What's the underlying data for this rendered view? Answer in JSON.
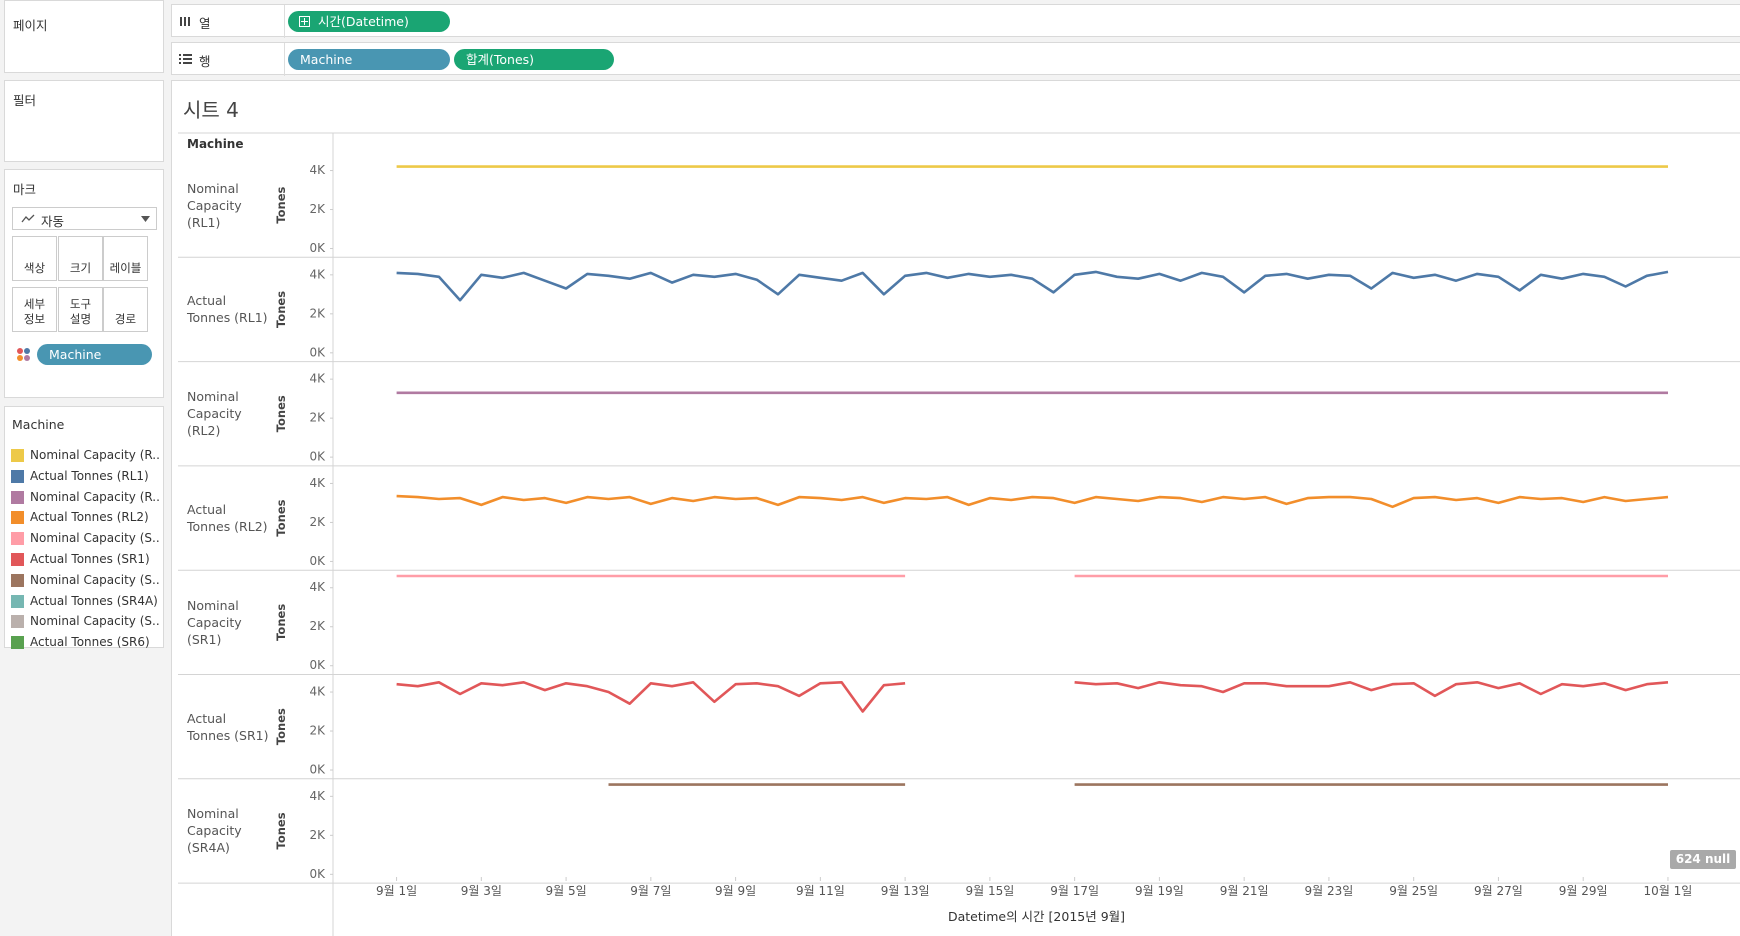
{
  "sidebar": {
    "pages": "페이지",
    "filters": "필터",
    "marks": "마크",
    "mark_type": "자동",
    "mark_buttons": [
      "색상",
      "크기",
      "레이블",
      "세부\n정보",
      "도구\n설명",
      "경로"
    ],
    "mark_pill": "Machine"
  },
  "shelves": {
    "columns_label": "열",
    "columns_pills": [
      "시간(Datetime)"
    ],
    "rows_label": "행",
    "rows_pills": [
      "Machine",
      "합계(Tones)"
    ]
  },
  "legend": {
    "title": "Machine",
    "items": [
      {
        "label": "Nominal Capacity (R..",
        "color": "#edc948"
      },
      {
        "label": "Actual Tonnes (RL1)",
        "color": "#4e79a7"
      },
      {
        "label": "Nominal Capacity (R..",
        "color": "#b07aa1"
      },
      {
        "label": "Actual Tonnes (RL2)",
        "color": "#f28e2b"
      },
      {
        "label": "Nominal Capacity (S..",
        "color": "#ff9da7"
      },
      {
        "label": "Actual Tonnes (SR1)",
        "color": "#e15759"
      },
      {
        "label": "Nominal Capacity (S..",
        "color": "#9c755f"
      },
      {
        "label": "Actual Tonnes (SR4A)",
        "color": "#76b7b2"
      },
      {
        "label": "Nominal Capacity (S..",
        "color": "#bab0ac"
      },
      {
        "label": "Actual Tonnes (SR6)",
        "color": "#59a14f"
      }
    ]
  },
  "sheet_title": "시트 4",
  "null_badge": "624 null",
  "chart_data": {
    "type": "line",
    "facet_header": "Machine",
    "ylabel": "Tones",
    "xlabel": "Datetime의 시간 [2015년 9월]",
    "xlim": [
      -1.5,
      31.7
    ],
    "xticks": [
      {
        "value": 0,
        "label": "9월 1일"
      },
      {
        "value": 2,
        "label": "9월 3일"
      },
      {
        "value": 4,
        "label": "9월 5일"
      },
      {
        "value": 6,
        "label": "9월 7일"
      },
      {
        "value": 8,
        "label": "9월 9일"
      },
      {
        "value": 10,
        "label": "9월 11일"
      },
      {
        "value": 12,
        "label": "9월 13일"
      },
      {
        "value": 14,
        "label": "9월 15일"
      },
      {
        "value": 16,
        "label": "9월 17일"
      },
      {
        "value": 18,
        "label": "9월 19일"
      },
      {
        "value": 20,
        "label": "9월 21일"
      },
      {
        "value": 22,
        "label": "9월 23일"
      },
      {
        "value": 24,
        "label": "9월 25일"
      },
      {
        "value": 26,
        "label": "9월 27일"
      },
      {
        "value": 28,
        "label": "9월 29일"
      },
      {
        "value": 30,
        "label": "10월 1일"
      }
    ],
    "ylim": [
      -450,
      4900
    ],
    "yticks": [
      {
        "value": 0,
        "label": "0K"
      },
      {
        "value": 2000,
        "label": "2K"
      },
      {
        "value": 4000,
        "label": "4K"
      }
    ],
    "x": [
      0,
      0.5,
      1,
      1.5,
      2,
      2.5,
      3,
      3.5,
      4,
      4.5,
      5,
      5.5,
      6,
      6.5,
      7,
      7.5,
      8,
      8.5,
      9,
      9.5,
      10,
      10.5,
      11,
      11.5,
      12,
      12.5,
      13,
      13.5,
      14,
      14.5,
      15,
      15.5,
      16,
      16.5,
      17,
      17.5,
      18,
      18.5,
      19,
      19.5,
      20,
      20.5,
      21,
      21.5,
      22,
      22.5,
      23,
      23.5,
      24,
      24.5,
      25,
      25.5,
      26,
      26.5,
      27,
      27.5,
      28,
      28.5,
      29,
      29.5,
      30
    ],
    "series": [
      {
        "name": "Nominal Capacity (RL1)",
        "color": "#edc948",
        "values": [
          4200,
          4200,
          4200,
          4200,
          4200,
          4200,
          4200,
          4200,
          4200,
          4200,
          4200,
          4200,
          4200,
          4200,
          4200,
          4200,
          4200,
          4200,
          4200,
          4200,
          4200,
          4200,
          4200,
          4200,
          4200,
          4200,
          4200,
          4200,
          4200,
          4200,
          4200,
          4200,
          4200,
          4200,
          4200,
          4200,
          4200,
          4200,
          4200,
          4200,
          4200,
          4200,
          4200,
          4200,
          4200,
          4200,
          4200,
          4200,
          4200,
          4200,
          4200,
          4200,
          4200,
          4200,
          4200,
          4200,
          4200,
          4200,
          4200,
          4200,
          4200
        ]
      },
      {
        "name": "Actual Tonnes (RL1)",
        "color": "#4e79a7",
        "values": [
          4100,
          4050,
          3900,
          2700,
          4000,
          3850,
          4100,
          3700,
          3300,
          4050,
          3950,
          3800,
          4100,
          3600,
          4000,
          3900,
          4050,
          3750,
          3000,
          4000,
          3850,
          3700,
          4100,
          3000,
          3950,
          4100,
          3850,
          4050,
          3900,
          4000,
          3800,
          3100,
          4000,
          4150,
          3900,
          3800,
          4050,
          3700,
          4100,
          3900,
          3100,
          3950,
          4050,
          3800,
          4000,
          3950,
          3300,
          4100,
          3850,
          4000,
          3700,
          4050,
          3900,
          3200,
          4000,
          3800,
          4050,
          3900,
          3400,
          3950,
          4150
        ]
      },
      {
        "name": "Nominal Capacity (RL2)",
        "color": "#b07aa1",
        "values": [
          3300,
          3300,
          3300,
          3300,
          3300,
          3300,
          3300,
          3300,
          3300,
          3300,
          3300,
          3300,
          3300,
          3300,
          3300,
          3300,
          3300,
          3300,
          3300,
          3300,
          3300,
          3300,
          3300,
          3300,
          3300,
          3300,
          3300,
          3300,
          3300,
          3300,
          3300,
          3300,
          3300,
          3300,
          3300,
          3300,
          3300,
          3300,
          3300,
          3300,
          3300,
          3300,
          3300,
          3300,
          3300,
          3300,
          3300,
          3300,
          3300,
          3300,
          3300,
          3300,
          3300,
          3300,
          3300,
          3300,
          3300,
          3300,
          3300,
          3300,
          3300
        ]
      },
      {
        "name": "Actual Tonnes (RL2)",
        "color": "#f28e2b",
        "values": [
          3350,
          3300,
          3200,
          3250,
          2900,
          3300,
          3150,
          3250,
          3000,
          3300,
          3200,
          3300,
          2950,
          3250,
          3100,
          3300,
          3200,
          3250,
          2900,
          3300,
          3250,
          3150,
          3300,
          3000,
          3250,
          3200,
          3300,
          2900,
          3250,
          3150,
          3300,
          3250,
          3000,
          3300,
          3200,
          3100,
          3300,
          3250,
          3050,
          3300,
          3200,
          3300,
          2950,
          3250,
          3300,
          3300,
          3200,
          2800,
          3250,
          3300,
          3150,
          3250,
          3000,
          3300,
          3200,
          3250,
          3050,
          3300,
          3100,
          3200,
          3300
        ]
      },
      {
        "name": "Nominal Capacity (SR1)",
        "color": "#ff9da7",
        "values": [
          4600,
          4600,
          4600,
          4600,
          4600,
          4600,
          4600,
          4600,
          4600,
          4600,
          4600,
          4600,
          4600,
          4600,
          4600,
          4600,
          4600,
          4600,
          4600,
          4600,
          4600,
          4600,
          4600,
          4600,
          4600,
          null,
          null,
          null,
          null,
          null,
          null,
          null,
          4600,
          4600,
          4600,
          4600,
          4600,
          4600,
          4600,
          4600,
          4600,
          4600,
          4600,
          4600,
          4600,
          4600,
          4600,
          4600,
          4600,
          4600,
          4600,
          4600,
          4600,
          4600,
          4600,
          4600,
          4600,
          4600,
          4600,
          4600,
          4600
        ]
      },
      {
        "name": "Actual Tonnes (SR1)",
        "color": "#e15759",
        "values": [
          4400,
          4300,
          4500,
          3900,
          4450,
          4350,
          4500,
          4100,
          4450,
          4300,
          4000,
          3400,
          4450,
          4300,
          4500,
          3500,
          4400,
          4450,
          4300,
          3800,
          4450,
          4500,
          3000,
          4350,
          4450,
          null,
          null,
          null,
          null,
          null,
          null,
          null,
          4500,
          4400,
          4450,
          4200,
          4500,
          4350,
          4300,
          4000,
          4450,
          4450,
          4300,
          4300,
          4300,
          4500,
          4100,
          4400,
          4450,
          3800,
          4400,
          4500,
          4200,
          4450,
          3900,
          4400,
          4300,
          4450,
          4100,
          4400,
          4500
        ]
      },
      {
        "name": "Nominal Capacity (SR4A)",
        "color": "#9c755f",
        "values": [
          null,
          null,
          null,
          null,
          null,
          null,
          null,
          null,
          null,
          null,
          4600,
          4600,
          4600,
          4600,
          4600,
          4600,
          4600,
          4600,
          4600,
          4600,
          4600,
          4600,
          4600,
          4600,
          4600,
          null,
          null,
          null,
          null,
          null,
          null,
          null,
          4600,
          4600,
          4600,
          4600,
          4600,
          4600,
          4600,
          4600,
          4600,
          4600,
          4600,
          4600,
          4600,
          4600,
          4600,
          4600,
          4600,
          4600,
          4600,
          4600,
          4600,
          4600,
          4600,
          4600,
          4600,
          4600,
          4600,
          4600,
          4600
        ]
      }
    ]
  }
}
